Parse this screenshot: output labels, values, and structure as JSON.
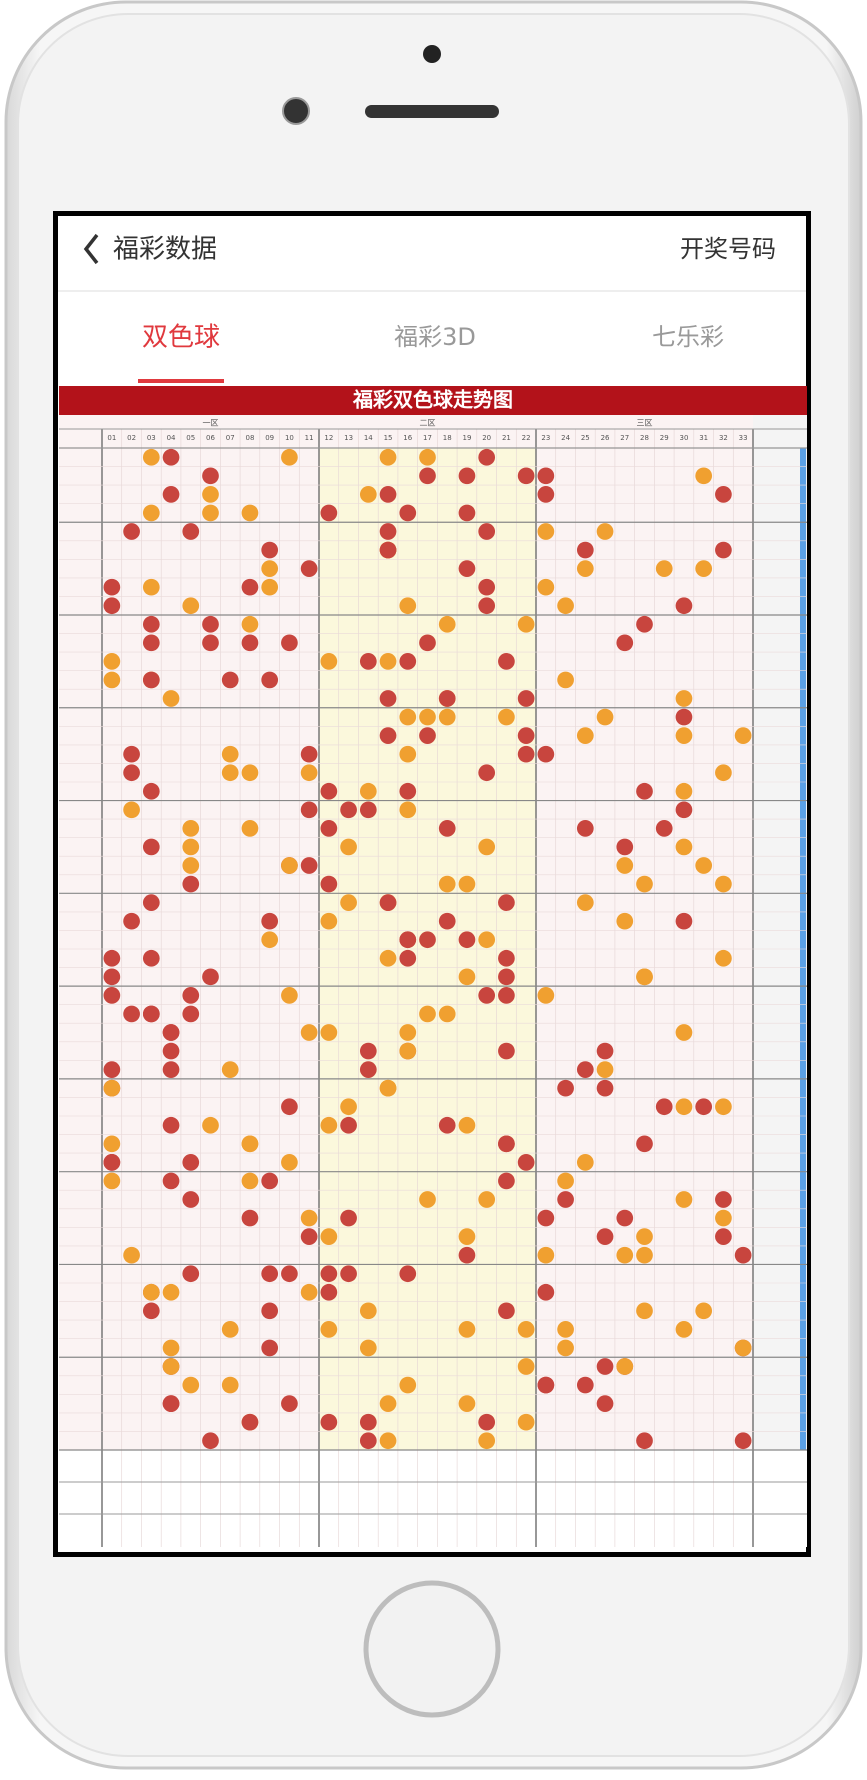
{
  "header": {
    "title": "福彩数据",
    "action": "开奖号码"
  },
  "tabs": [
    "双色球",
    "福彩3D",
    "七乐彩"
  ],
  "chart": {
    "title": "福彩双色球走势图",
    "zones": [
      "一区",
      "二区",
      "三区"
    ],
    "columns": [
      "01",
      "02",
      "03",
      "04",
      "05",
      "06",
      "07",
      "08",
      "09",
      "10",
      "11",
      "12",
      "13",
      "14",
      "15",
      "16",
      "17",
      "18",
      "19",
      "20",
      "21",
      "22",
      "23",
      "24",
      "25",
      "26",
      "27",
      "28",
      "29",
      "30",
      "31",
      "32",
      "33"
    ]
  }
}
